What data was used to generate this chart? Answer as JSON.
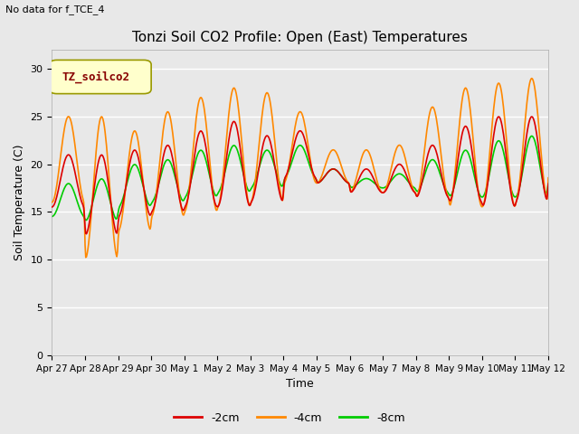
{
  "title": "Tonzi Soil CO2 Profile: Open (East) Temperatures",
  "xlabel": "Time",
  "ylabel": "Soil Temperature (C)",
  "top_left_note": "No data for f_TCE_4",
  "legend_box_label": "TZ_soilco2",
  "ylim": [
    0,
    32
  ],
  "yticks": [
    0,
    5,
    10,
    15,
    20,
    25,
    30
  ],
  "background_color": "#e8e8e8",
  "series": {
    "-2cm": {
      "color": "#dd0000",
      "linewidth": 1.2
    },
    "-4cm": {
      "color": "#ff8800",
      "linewidth": 1.2
    },
    "-8cm": {
      "color": "#00cc00",
      "linewidth": 1.2
    }
  },
  "x_tick_labels": [
    "Apr 27",
    "Apr 28",
    "Apr 29",
    "Apr 30",
    "May 1",
    "May 2",
    "May 3",
    "May 4",
    "May 5",
    "May 6",
    "May 7",
    "May 8",
    "May 9",
    "May 10",
    "May 11",
    "May 12"
  ],
  "days": 15,
  "pts_per_day": 48
}
